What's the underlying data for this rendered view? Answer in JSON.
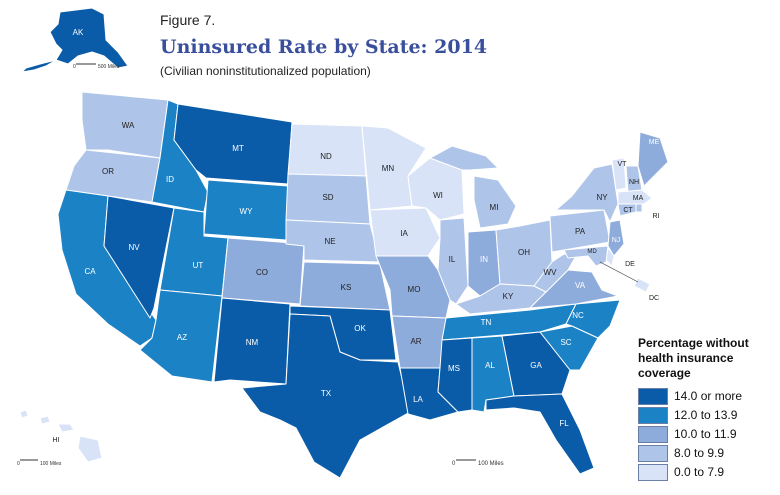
{
  "header": {
    "figure_label": "Figure 7.",
    "title": "Uninsured Rate by State: 2014",
    "subtitle": "(Civilian noninstitutionalized population)"
  },
  "legend": {
    "title_lines": [
      "Percentage without",
      "health insurance",
      "coverage"
    ],
    "items": [
      {
        "label": "14.0 or more",
        "color": "#0b5ca8"
      },
      {
        "label": "12.0 to 13.9",
        "color": "#1c82c6"
      },
      {
        "label": "10.0 to 11.9",
        "color": "#8eacdb"
      },
      {
        "label": "8.0 to 9.9",
        "color": "#aec4e9"
      },
      {
        "label": "0.0 to 7.9",
        "color": "#d8e3f7"
      }
    ]
  },
  "scale_bars": {
    "alaska": "500 Miles",
    "hawaii": "100 Miles",
    "mainland": "100 Miles",
    "zero": "0"
  },
  "states": [
    {
      "abbr": "WA",
      "class": 3
    },
    {
      "abbr": "OR",
      "class": 3
    },
    {
      "abbr": "CA",
      "class": 1
    },
    {
      "abbr": "ID",
      "class": 1
    },
    {
      "abbr": "NV",
      "class": 0
    },
    {
      "abbr": "MT",
      "class": 0
    },
    {
      "abbr": "WY",
      "class": 1
    },
    {
      "abbr": "UT",
      "class": 1
    },
    {
      "abbr": "AZ",
      "class": 1
    },
    {
      "abbr": "CO",
      "class": 2
    },
    {
      "abbr": "NM",
      "class": 0
    },
    {
      "abbr": "ND",
      "class": 4
    },
    {
      "abbr": "SD",
      "class": 3
    },
    {
      "abbr": "NE",
      "class": 3
    },
    {
      "abbr": "KS",
      "class": 2
    },
    {
      "abbr": "OK",
      "class": 0
    },
    {
      "abbr": "TX",
      "class": 0
    },
    {
      "abbr": "MN",
      "class": 4
    },
    {
      "abbr": "IA",
      "class": 4
    },
    {
      "abbr": "MO",
      "class": 2
    },
    {
      "abbr": "AR",
      "class": 2
    },
    {
      "abbr": "LA",
      "class": 0
    },
    {
      "abbr": "WI",
      "class": 4
    },
    {
      "abbr": "IL",
      "class": 3
    },
    {
      "abbr": "MI",
      "class": 3
    },
    {
      "abbr": "IN",
      "class": 2
    },
    {
      "abbr": "OH",
      "class": 3
    },
    {
      "abbr": "KY",
      "class": 3
    },
    {
      "abbr": "TN",
      "class": 1
    },
    {
      "abbr": "MS",
      "class": 0
    },
    {
      "abbr": "AL",
      "class": 1
    },
    {
      "abbr": "GA",
      "class": 0
    },
    {
      "abbr": "FL",
      "class": 0
    },
    {
      "abbr": "SC",
      "class": 1
    },
    {
      "abbr": "NC",
      "class": 1
    },
    {
      "abbr": "VA",
      "class": 2
    },
    {
      "abbr": "WV",
      "class": 3
    },
    {
      "abbr": "PA",
      "class": 3
    },
    {
      "abbr": "NY",
      "class": 3
    },
    {
      "abbr": "ME",
      "class": 2
    },
    {
      "abbr": "VT",
      "class": 4
    },
    {
      "abbr": "NH",
      "class": 3
    },
    {
      "abbr": "MA",
      "class": 4
    },
    {
      "abbr": "RI",
      "class": 3
    },
    {
      "abbr": "CT",
      "class": 3
    },
    {
      "abbr": "NJ",
      "class": 2
    },
    {
      "abbr": "DE",
      "class": 4
    },
    {
      "abbr": "MD",
      "class": 3
    },
    {
      "abbr": "DC",
      "class": 4
    },
    {
      "abbr": "AK",
      "class": 0
    },
    {
      "abbr": "HI",
      "class": 4
    }
  ]
}
